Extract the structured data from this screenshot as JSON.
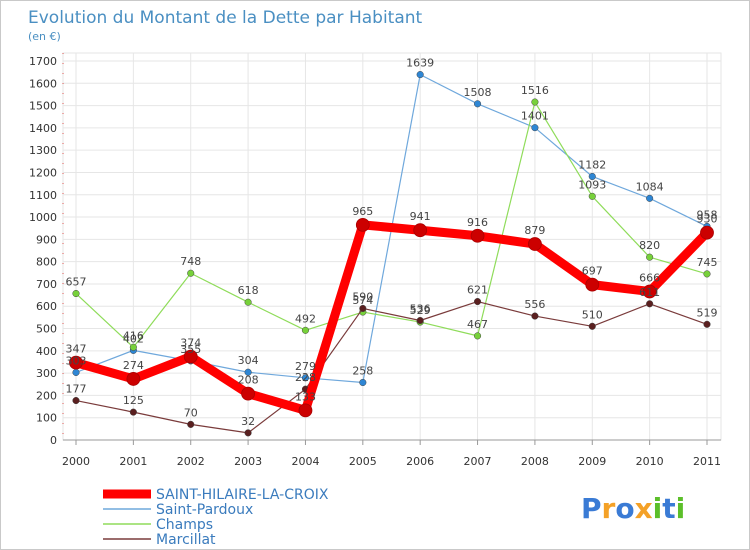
{
  "chart_data": {
    "type": "line",
    "title": "Evolution du Montant de la Dette par Habitant",
    "subtitle": "(en €)",
    "categories": [
      "2000",
      "2001",
      "2002",
      "2003",
      "2004",
      "2005",
      "2006",
      "2007",
      "2008",
      "2009",
      "2010",
      "2011"
    ],
    "ylim": [
      0,
      1700
    ],
    "yticks": [
      0,
      100,
      200,
      300,
      400,
      500,
      600,
      700,
      800,
      900,
      1000,
      1100,
      1200,
      1300,
      1400,
      1500,
      1600,
      1700
    ],
    "grid": true,
    "legend_position": "bottom-left",
    "series": [
      {
        "name": "SAINT-HILAIRE-LA-CROIX",
        "color": "#ff0000",
        "marker_color": "#cc0000",
        "values": [
          347,
          274,
          374,
          208,
          133,
          965,
          941,
          916,
          879,
          697,
          666,
          930
        ]
      },
      {
        "name": "Saint-Pardoux",
        "color": "#6fa8dc",
        "marker_color": "#2e86d4",
        "values": [
          303,
          402,
          355,
          304,
          279,
          258,
          1639,
          1508,
          1401,
          1182,
          1084,
          958
        ]
      },
      {
        "name": "Champs",
        "color": "#8fdc5a",
        "marker_color": "#77d13a",
        "values": [
          657,
          416,
          748,
          618,
          492,
          574,
          529,
          467,
          1516,
          1093,
          820,
          745
        ]
      },
      {
        "name": "Marcillat",
        "color": "#7a3b3b",
        "marker_color": "#5a1f1f",
        "values": [
          177,
          125,
          70,
          32,
          228,
          590,
          536,
          621,
          556,
          510,
          611,
          519
        ]
      }
    ]
  },
  "brand": {
    "letters": [
      "P",
      "r",
      "o",
      "x",
      "i",
      "t",
      "i"
    ],
    "colors": [
      "#3a7bd5",
      "#f4a127",
      "#3a7bd5",
      "#f4a127",
      "#5cbf2a",
      "#3a7bd5",
      "#5cbf2a"
    ]
  }
}
